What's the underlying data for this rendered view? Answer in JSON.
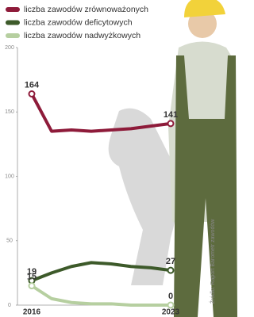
{
  "chart_data": {
    "type": "line",
    "categories": [
      "2016",
      null,
      null,
      null,
      null,
      null,
      null,
      "2023"
    ],
    "series": [
      {
        "name": "liczba zawodów zrównoważonych",
        "color": "#8e1b3a",
        "values": [
          164,
          135,
          136,
          135,
          136,
          137,
          139,
          141
        ]
      },
      {
        "name": "liczba zawodów deficytowych",
        "color": "#3d5a2a",
        "values": [
          19,
          25,
          30,
          33,
          32,
          30,
          29,
          27
        ]
      },
      {
        "name": "liczba zawodów nadwyżkowych",
        "color": "#b6cfa0",
        "values": [
          15,
          5,
          2,
          1,
          1,
          0,
          0,
          0
        ]
      }
    ],
    "ylim": [
      0,
      200
    ],
    "yticks": [
      0,
      50,
      100,
      150,
      200
    ],
    "grid": false,
    "source": "Źródło: Raport Barometr zawodów"
  }
}
